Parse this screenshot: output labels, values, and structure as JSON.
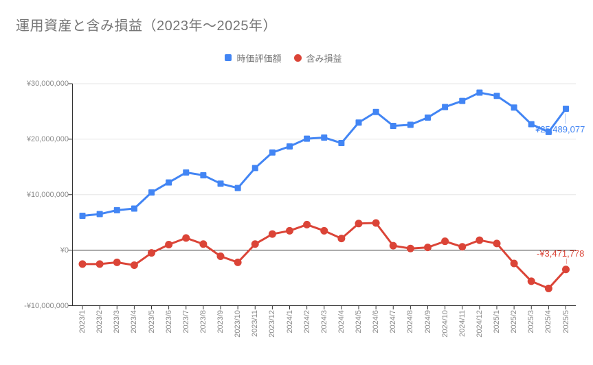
{
  "title": "運用資産と含み損益（2023年～2025年）",
  "legend": {
    "series1_label": "時価評価額",
    "series2_label": "含み損益"
  },
  "colors": {
    "series1_blue": "#4285f4",
    "series2_red": "#db4437",
    "gridline": "#e6e6e6",
    "axis": "#333333",
    "title_text": "#757575",
    "axis_label_text": "#8a8a8a"
  },
  "chart_data": {
    "type": "line",
    "title": "運用資産と含み損益（2023年～2025年）",
    "categories": [
      "2023/1",
      "2023/2",
      "2023/3",
      "2023/4",
      "2023/5",
      "2023/6",
      "2023/7",
      "2023/8",
      "2023/9",
      "2023/10",
      "2023/11",
      "2023/12",
      "2024/1",
      "2024/2",
      "2024/3",
      "2024/4",
      "2024/5",
      "2024/6",
      "2024/7",
      "2024/8",
      "2024/9",
      "2024/10",
      "2024/11",
      "2024/12",
      "2025/1",
      "2025/2",
      "2025/3",
      "2025/4",
      "2025/5"
    ],
    "series": [
      {
        "name": "時価評価額",
        "color": "#4285f4",
        "marker": "square",
        "values": [
          6200000,
          6500000,
          7200000,
          7500000,
          10400000,
          12200000,
          14000000,
          13500000,
          12000000,
          11200000,
          14800000,
          17600000,
          18700000,
          20100000,
          20300000,
          19300000,
          23000000,
          24900000,
          22400000,
          22600000,
          23900000,
          25800000,
          26900000,
          28400000,
          27800000,
          25700000,
          22700000,
          21300000,
          25489077
        ]
      },
      {
        "name": "含み損益",
        "color": "#db4437",
        "marker": "circle",
        "values": [
          -2500000,
          -2500000,
          -2200000,
          -2700000,
          -500000,
          1000000,
          2200000,
          1100000,
          -1100000,
          -2200000,
          1100000,
          2900000,
          3500000,
          4600000,
          3500000,
          2100000,
          4800000,
          4900000,
          800000,
          300000,
          500000,
          1600000,
          600000,
          1800000,
          1200000,
          -2400000,
          -5600000,
          -6900000,
          -3471778
        ]
      }
    ],
    "y_ticks": [
      {
        "label": "¥30,000,000",
        "value": 30000000
      },
      {
        "label": "¥20,000,000",
        "value": 20000000
      },
      {
        "label": "¥10,000,000",
        "value": 10000000
      },
      {
        "label": "¥0",
        "value": 0
      },
      {
        "label": "-¥10,000,000",
        "value": -10000000
      }
    ],
    "ylim": [
      -10000000,
      30000000
    ],
    "grid": true,
    "legend_position": "top",
    "annotations": [
      {
        "series": 0,
        "index": 28,
        "text": "¥25,489,077",
        "position": "below"
      },
      {
        "series": 1,
        "index": 28,
        "text": "-¥3,471,778",
        "position": "above"
      }
    ]
  }
}
